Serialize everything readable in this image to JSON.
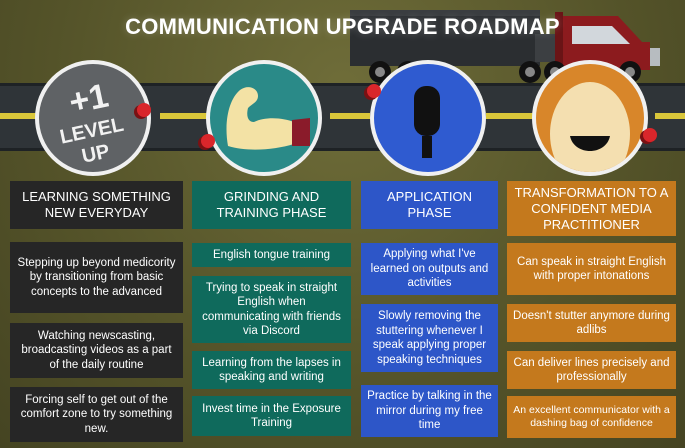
{
  "title": "COMMUNICATION UPGRADE ROADMAP",
  "badge": {
    "line1": "+1",
    "line2": "LEVEL",
    "line3": "UP"
  },
  "colors": {
    "dark": "#262626",
    "teal": "#0f6a5c",
    "blue": "#2d56c8",
    "orange": "#c4791d",
    "pin": "#d9262b",
    "road": "#2f3438",
    "lane": "#d9c63a"
  },
  "icons": [
    "level-up-badge-icon",
    "flexed-arm-icon",
    "microphone-icon",
    "smiling-face-icon",
    "truck-icon"
  ],
  "columns": [
    {
      "header": "LEARNING SOMETHING NEW EVERYDAY",
      "items": [
        "Stepping up beyond medicority by transitioning from basic concepts to the advanced",
        "Watching newscasting, broadcasting videos as a part of the daily routine",
        "Forcing self to get out of the comfort zone to try something new."
      ]
    },
    {
      "header": "GRINDING AND TRAINING PHASE",
      "items": [
        "English tongue training",
        "Trying to speak in straight English when communicating with friends via Discord",
        "Learning from the lapses in speaking and writing",
        "Invest time in the Exposure Training"
      ]
    },
    {
      "header": "APPLICATION PHASE",
      "items": [
        "Applying what I've learned on outputs and activities",
        "Slowly removing the stuttering whenever I speak applying proper speaking techniques",
        "Practice by talking in the mirror during my free time"
      ]
    },
    {
      "header": "TRANSFORMATION TO A CONFIDENT MEDIA PRACTITIONER",
      "items": [
        "Can speak in straight English with proper intonations",
        "Doesn't stutter anymore during adlibs",
        "Can deliver lines precisely and professionally",
        "An excellent communicator with a dashing bag of confidence"
      ]
    }
  ]
}
